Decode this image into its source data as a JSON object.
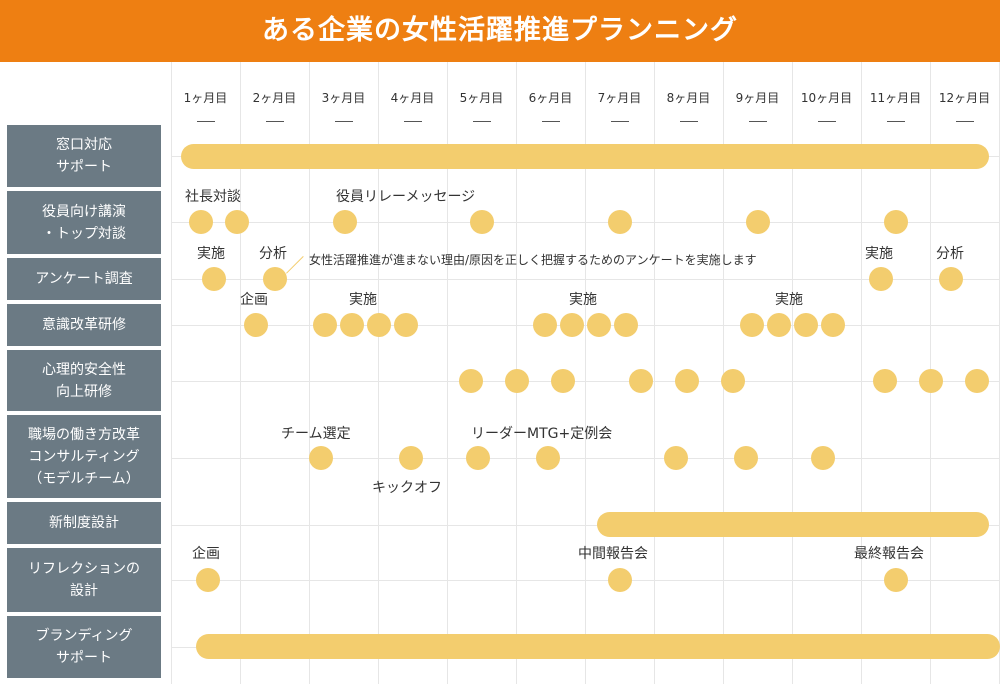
{
  "title": "ある企業の女性活躍推進プランニング",
  "months": [
    "1ヶ月目",
    "2ヶ月目",
    "3ヶ月目",
    "4ヶ月目",
    "5ヶ月目",
    "6ヶ月目",
    "7ヶ月目",
    "8ヶ月目",
    "9ヶ月目",
    "10ヶ月目",
    "11ヶ月目",
    "12ヶ月目"
  ],
  "rows": [
    {
      "label": "窓口対応\nサポート"
    },
    {
      "label": "役員向け講演\n・トップ対談"
    },
    {
      "label": "アンケート調査"
    },
    {
      "label": "意識改革研修"
    },
    {
      "label": "心理的安全性\n向上研修"
    },
    {
      "label": "職場の働き方改革\nコンサルティング\n（モデルチーム）"
    },
    {
      "label": "新制度設計"
    },
    {
      "label": "リフレクションの\n設計"
    },
    {
      "label": "ブランディング\nサポート"
    }
  ],
  "labels": {
    "shacho_taidan": "社長対談",
    "yakuin_relay": "役員リレーメッセージ",
    "survey_jisshi_1": "実施",
    "survey_bunseki_1": "分析",
    "survey_note": "女性活躍推進が進まない理由/原因を正しく把握するためのアンケートを実施します",
    "survey_jisshi_2": "実施",
    "survey_bunseki_2": "分析",
    "training_kikaku": "企画",
    "training_jisshi_1": "実施",
    "training_jisshi_2": "実施",
    "training_jisshi_3": "実施",
    "team_sentei": "チーム選定",
    "kickoff": "キックオフ",
    "leader_mtg": "リーダーMTG+定例会",
    "refl_kikaku": "企画",
    "chukan": "中間報告会",
    "saishu": "最終報告会"
  },
  "colors": {
    "header": "#ee7f12",
    "label_bg": "#6b7a84",
    "marker": "#f3cd6e",
    "grid": "#e6e6e6"
  }
}
